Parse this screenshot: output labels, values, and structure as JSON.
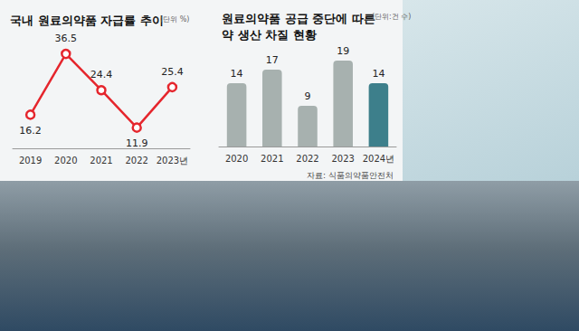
{
  "chart_data": [
    {
      "type": "line",
      "title": "국내 원료의약품 자급률 추이",
      "subtitle": "(단위 %)",
      "categories": [
        "2019",
        "2020",
        "2021",
        "2022",
        "2023년"
      ],
      "values": [
        16.2,
        36.5,
        24.4,
        11.9,
        25.4
      ],
      "color": "#e5262d",
      "marker": "circle",
      "ylim": [
        5,
        40
      ],
      "grid": false,
      "data_labels": true,
      "tick_labels": "x"
    },
    {
      "type": "bar",
      "title": "원료의약품 공급 중단에 따른\n약 생산 차질 현황",
      "subtitle": "(단위:건 수)",
      "source": "자료: 식품의약품안전처",
      "categories": [
        "2020",
        "2021",
        "2022",
        "2023",
        "2024년"
      ],
      "values": [
        14,
        17,
        9,
        19,
        14
      ],
      "colors": [
        "#a7b1af",
        "#a7b1af",
        "#a7b1af",
        "#a7b1af",
        "#3d7f8b"
      ],
      "ylim": [
        0,
        20
      ],
      "grid": false,
      "data_labels": true,
      "tick_labels": "x"
    }
  ]
}
